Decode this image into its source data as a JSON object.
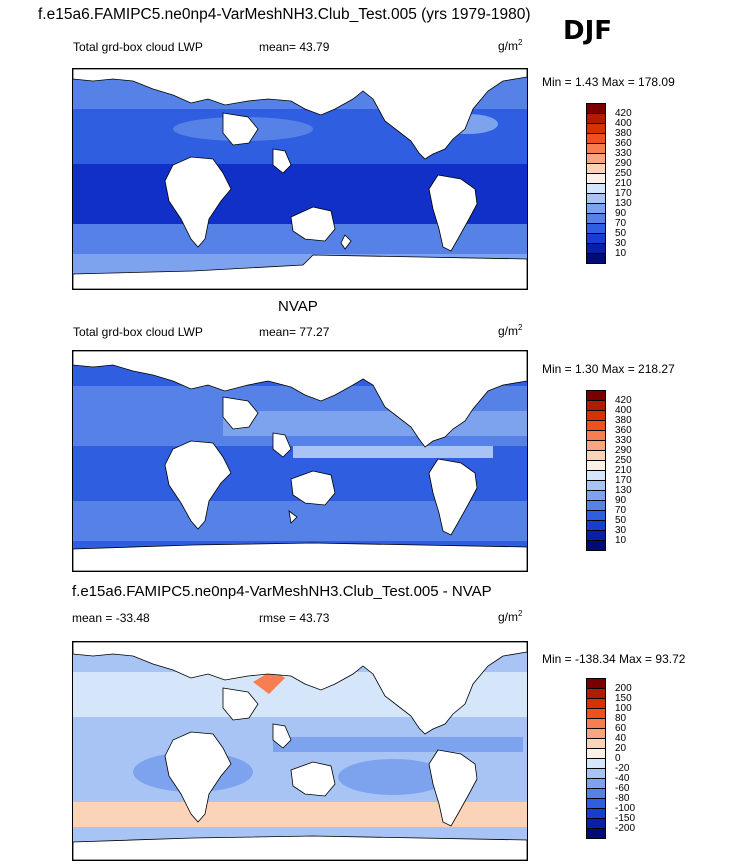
{
  "figure": {
    "title": "f.e15a6.FAMIPC5.ne0np4-VarMeshNH3.Club_Test.005 (yrs 1979-1980)",
    "season": "DJF"
  },
  "panels": [
    {
      "heading": "",
      "left_label": "Total grd-box cloud LWP",
      "stat_label": "mean=  43.79",
      "units": "g/m",
      "units_sup": "2",
      "minmax": "Min =   1.43 Max = 178.09",
      "colorbar": {
        "levels": [
          "420",
          "400",
          "380",
          "360",
          "330",
          "290",
          "250",
          "210",
          "170",
          "130",
          "90",
          "70",
          "50",
          "30",
          "10"
        ],
        "colors": [
          "#7a0000",
          "#b31b00",
          "#d43300",
          "#ef5020",
          "#f77e50",
          "#f8a680",
          "#fbd3b8",
          "#fdf0e6",
          "#d5e6fa",
          "#a7c4f5",
          "#7da3ee",
          "#5682e8",
          "#2f5fe0",
          "#173ed0",
          "#0a1fa8",
          "#000a78"
        ]
      },
      "fields": {
        "ocean": "#2f5fe0",
        "band1": "#5682e8",
        "band2": "#7da3ee",
        "band3": "#1030c8",
        "land": "#ffffff"
      }
    },
    {
      "heading": "NVAP",
      "left_label": "Total grd-box cloud LWP",
      "stat_label": "mean=  77.27",
      "units": "g/m",
      "units_sup": "2",
      "minmax": "Min =   1.30 Max = 218.27",
      "colorbar": {
        "levels": [
          "420",
          "400",
          "380",
          "360",
          "330",
          "290",
          "250",
          "210",
          "170",
          "130",
          "90",
          "70",
          "50",
          "30",
          "10"
        ],
        "colors": [
          "#7a0000",
          "#b31b00",
          "#d43300",
          "#ef5020",
          "#f77e50",
          "#f8a680",
          "#fbd3b8",
          "#fdf0e6",
          "#d5e6fa",
          "#a7c4f5",
          "#7da3ee",
          "#5682e8",
          "#2f5fe0",
          "#173ed0",
          "#0a1fa8",
          "#000a78"
        ]
      },
      "fields": {
        "ocean": "#2f5fe0",
        "band1": "#5682e8",
        "band2": "#7da3ee",
        "band3": "#a7c4f5",
        "land": "#ffffff"
      }
    },
    {
      "heading": "f.e15a6.FAMIPC5.ne0np4-VarMeshNH3.Club_Test.005 - NVAP",
      "left_label": "mean = -33.48",
      "stat_label": "rmse =  43.73",
      "units": "g/m",
      "units_sup": "2",
      "minmax": "Min = -138.34 Max =  93.72",
      "colorbar": {
        "levels": [
          "200",
          "150",
          "100",
          "80",
          "60",
          "40",
          "20",
          "0",
          "-20",
          "-40",
          "-60",
          "-80",
          "-100",
          "-150",
          "-200"
        ],
        "colors": [
          "#7a0000",
          "#b31b00",
          "#d43300",
          "#ef5020",
          "#f77e50",
          "#f8a680",
          "#fbd3b8",
          "#fdf0e6",
          "#d5e6fa",
          "#a7c4f5",
          "#7da3ee",
          "#5682e8",
          "#2f5fe0",
          "#173ed0",
          "#0a1fa8",
          "#000a78"
        ]
      },
      "fields": {
        "ocean": "#a7c4f5",
        "band1": "#7da3ee",
        "band2": "#d5e6fa",
        "band3": "#fbd3b8",
        "land": "#ffffff"
      }
    }
  ]
}
